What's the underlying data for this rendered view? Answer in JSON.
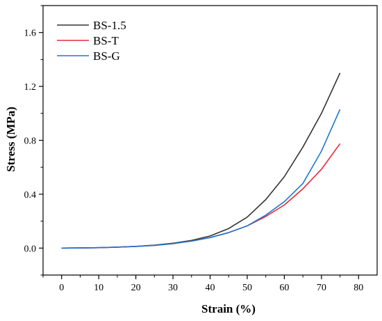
{
  "chart_data": {
    "type": "line",
    "title": "",
    "xlabel": "Strain (%)",
    "ylabel": "Stress (MPa)",
    "xlim": [
      -5,
      85
    ],
    "ylim": [
      -0.2,
      1.8
    ],
    "xticks": [
      0,
      10,
      20,
      30,
      40,
      50,
      60,
      70,
      80
    ],
    "xtick_labels": [
      "0",
      "10",
      "20",
      "30",
      "40",
      "50",
      "60",
      "70",
      "80"
    ],
    "yticks": [
      0.0,
      0.4,
      0.8,
      1.2,
      1.6
    ],
    "ytick_labels": [
      "0.0",
      "0.4",
      "0.8",
      "1.2",
      "1.6"
    ],
    "grid": false,
    "legend_position": "top-left",
    "series": [
      {
        "name": "BS-1.5",
        "color": "#333333",
        "x": [
          0,
          5,
          10,
          15,
          20,
          25,
          30,
          35,
          40,
          45,
          50,
          55,
          60,
          65,
          70,
          75
        ],
        "y": [
          0.0,
          0.001,
          0.003,
          0.007,
          0.013,
          0.022,
          0.036,
          0.057,
          0.09,
          0.145,
          0.23,
          0.36,
          0.53,
          0.75,
          1.0,
          1.3
        ]
      },
      {
        "name": "BS-T",
        "color": "#e8283a",
        "x": [
          0,
          5,
          10,
          15,
          20,
          25,
          30,
          35,
          40,
          45,
          50,
          55,
          60,
          65,
          70,
          75
        ],
        "y": [
          0.0,
          0.001,
          0.003,
          0.007,
          0.012,
          0.02,
          0.033,
          0.052,
          0.078,
          0.115,
          0.165,
          0.235,
          0.32,
          0.44,
          0.585,
          0.775
        ]
      },
      {
        "name": "BS-G",
        "color": "#1f77d0",
        "x": [
          0,
          5,
          10,
          15,
          20,
          25,
          30,
          35,
          40,
          45,
          50,
          55,
          60,
          65,
          70,
          75
        ],
        "y": [
          0.0,
          0.001,
          0.003,
          0.007,
          0.012,
          0.02,
          0.033,
          0.052,
          0.078,
          0.115,
          0.165,
          0.245,
          0.345,
          0.48,
          0.72,
          1.03
        ]
      }
    ]
  }
}
